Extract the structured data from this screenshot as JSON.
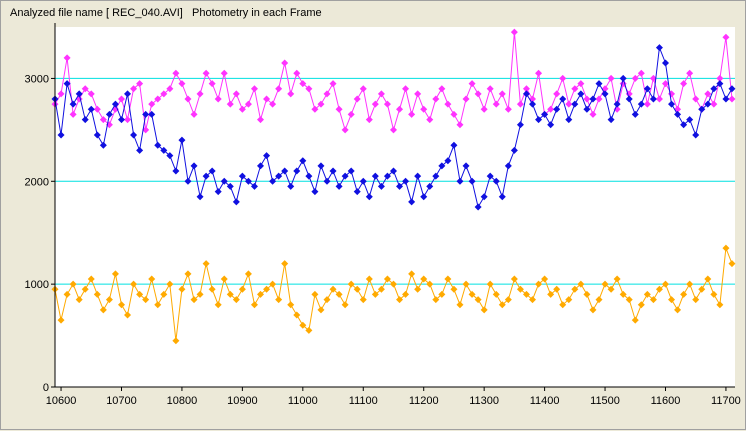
{
  "window": {
    "title": "Analyzed file name [ REC_040.AVI]   Photometry in each Frame"
  },
  "chart_data": {
    "type": "line",
    "title": "Analyzed file name [ REC_040.AVI]   Photometry in each Frame",
    "xlabel": "",
    "ylabel": "",
    "xlim": [
      10590,
      11715
    ],
    "ylim": [
      0,
      3500
    ],
    "xticks": [
      "10600",
      "10700",
      "10800",
      "10900",
      "11000",
      "11100",
      "11200",
      "11300",
      "11400",
      "11500",
      "11600",
      "11700"
    ],
    "yticks": [
      "0",
      "1000",
      "2000",
      "3000"
    ],
    "gridlines_y": [
      1000,
      2000,
      3000
    ],
    "grid_color": "#00e0e0",
    "series": [
      {
        "color": "#ff33ff",
        "x": [
          10590,
          10600,
          10610,
          10620,
          10630,
          10640,
          10650,
          10660,
          10670,
          10680,
          10690,
          10700,
          10710,
          10720,
          10730,
          10740,
          10750,
          10760,
          10770,
          10780,
          10790,
          10800,
          10810,
          10820,
          10830,
          10840,
          10850,
          10860,
          10870,
          10880,
          10890,
          10900,
          10910,
          10920,
          10930,
          10940,
          10950,
          10960,
          10970,
          10980,
          10990,
          11000,
          11010,
          11020,
          11030,
          11040,
          11050,
          11060,
          11070,
          11080,
          11090,
          11100,
          11110,
          11120,
          11130,
          11140,
          11150,
          11160,
          11170,
          11180,
          11190,
          11200,
          11210,
          11220,
          11230,
          11240,
          11250,
          11260,
          11270,
          11280,
          11290,
          11300,
          11310,
          11320,
          11330,
          11340,
          11350,
          11360,
          11370,
          11380,
          11390,
          11400,
          11410,
          11420,
          11430,
          11440,
          11450,
          11460,
          11470,
          11480,
          11490,
          11500,
          11510,
          11520,
          11530,
          11540,
          11550,
          11560,
          11570,
          11580,
          11590,
          11600,
          11610,
          11620,
          11630,
          11640,
          11650,
          11660,
          11670,
          11680,
          11690,
          11700,
          11710
        ],
        "y": [
          2750,
          2850,
          3200,
          2650,
          2800,
          2900,
          2850,
          2700,
          2600,
          2550,
          2700,
          2800,
          2600,
          2900,
          2950,
          2500,
          2750,
          2800,
          2850,
          2900,
          3050,
          2950,
          2800,
          2650,
          2850,
          3050,
          2950,
          2800,
          3050,
          2750,
          2850,
          2700,
          2750,
          2900,
          2600,
          2800,
          2750,
          2900,
          3150,
          2850,
          3050,
          2950,
          2900,
          2700,
          2750,
          2850,
          2950,
          2700,
          2500,
          2650,
          2800,
          2900,
          2600,
          2750,
          2850,
          2750,
          2500,
          2700,
          2900,
          2650,
          2850,
          2700,
          2600,
          2800,
          2900,
          2750,
          2650,
          2550,
          2800,
          2950,
          2850,
          2700,
          2900,
          2750,
          2850,
          2700,
          3450,
          2750,
          2900,
          2800,
          3050,
          2650,
          2700,
          2850,
          3000,
          2750,
          2900,
          2950,
          2800,
          2650,
          2800,
          2900,
          3000,
          2700,
          2950,
          2850,
          3000,
          3050,
          2750,
          3000,
          2800,
          2950,
          2850,
          2700,
          2950,
          3050,
          2800,
          2700,
          2850,
          2750,
          3000,
          3400,
          2800
        ]
      },
      {
        "color": "#1010e0",
        "x": [
          10590,
          10600,
          10610,
          10620,
          10630,
          10640,
          10650,
          10660,
          10670,
          10680,
          10690,
          10700,
          10710,
          10720,
          10730,
          10740,
          10750,
          10760,
          10770,
          10780,
          10790,
          10800,
          10810,
          10820,
          10830,
          10840,
          10850,
          10860,
          10870,
          10880,
          10890,
          10900,
          10910,
          10920,
          10930,
          10940,
          10950,
          10960,
          10970,
          10980,
          10990,
          11000,
          11010,
          11020,
          11030,
          11040,
          11050,
          11060,
          11070,
          11080,
          11090,
          11100,
          11110,
          11120,
          11130,
          11140,
          11150,
          11160,
          11170,
          11180,
          11190,
          11200,
          11210,
          11220,
          11230,
          11240,
          11250,
          11260,
          11270,
          11280,
          11290,
          11300,
          11310,
          11320,
          11330,
          11340,
          11350,
          11360,
          11370,
          11380,
          11390,
          11400,
          11410,
          11420,
          11430,
          11440,
          11450,
          11460,
          11470,
          11480,
          11490,
          11500,
          11510,
          11520,
          11530,
          11540,
          11550,
          11560,
          11570,
          11580,
          11590,
          11600,
          11610,
          11620,
          11630,
          11640,
          11650,
          11660,
          11670,
          11680,
          11690,
          11700,
          11710
        ],
        "y": [
          2800,
          2450,
          2950,
          2750,
          2850,
          2600,
          2700,
          2450,
          2350,
          2650,
          2750,
          2600,
          2850,
          2450,
          2300,
          2650,
          2650,
          2350,
          2300,
          2250,
          2100,
          2400,
          2000,
          2150,
          1850,
          2050,
          2100,
          1900,
          2000,
          1950,
          1800,
          2050,
          2000,
          1950,
          2150,
          2250,
          2000,
          2050,
          2100,
          1950,
          2100,
          2200,
          2050,
          1900,
          2150,
          2000,
          2100,
          1950,
          2050,
          2100,
          1900,
          2000,
          1850,
          2050,
          1950,
          2050,
          2100,
          1950,
          2000,
          1800,
          2050,
          1850,
          1950,
          2050,
          2150,
          2200,
          2350,
          2000,
          2150,
          2000,
          1750,
          1850,
          2050,
          2000,
          1850,
          2150,
          2300,
          2550,
          2850,
          2750,
          2600,
          2650,
          2550,
          2700,
          2800,
          2600,
          2750,
          2850,
          2700,
          2800,
          2950,
          2850,
          2600,
          2750,
          3000,
          2800,
          2650,
          2750,
          2900,
          2800,
          3300,
          3150,
          2750,
          2650,
          2550,
          2600,
          2450,
          2700,
          2750,
          2900,
          2950,
          2800,
          2900
        ]
      },
      {
        "color": "#ffaa00",
        "x": [
          10590,
          10600,
          10610,
          10620,
          10630,
          10640,
          10650,
          10660,
          10670,
          10680,
          10690,
          10700,
          10710,
          10720,
          10730,
          10740,
          10750,
          10760,
          10770,
          10780,
          10790,
          10800,
          10810,
          10820,
          10830,
          10840,
          10850,
          10860,
          10870,
          10880,
          10890,
          10900,
          10910,
          10920,
          10930,
          10940,
          10950,
          10960,
          10970,
          10980,
          10990,
          11000,
          11010,
          11020,
          11030,
          11040,
          11050,
          11060,
          11070,
          11080,
          11090,
          11100,
          11110,
          11120,
          11130,
          11140,
          11150,
          11160,
          11170,
          11180,
          11190,
          11200,
          11210,
          11220,
          11230,
          11240,
          11250,
          11260,
          11270,
          11280,
          11290,
          11300,
          11310,
          11320,
          11330,
          11340,
          11350,
          11360,
          11370,
          11380,
          11390,
          11400,
          11410,
          11420,
          11430,
          11440,
          11450,
          11460,
          11470,
          11480,
          11490,
          11500,
          11510,
          11520,
          11530,
          11540,
          11550,
          11560,
          11570,
          11580,
          11590,
          11600,
          11610,
          11620,
          11630,
          11640,
          11650,
          11660,
          11670,
          11680,
          11690,
          11700,
          11710
        ],
        "y": [
          950,
          650,
          900,
          1000,
          850,
          950,
          1050,
          900,
          750,
          850,
          1100,
          800,
          700,
          1000,
          900,
          850,
          1050,
          800,
          900,
          1000,
          450,
          950,
          1100,
          850,
          900,
          1200,
          950,
          800,
          1050,
          900,
          850,
          950,
          1100,
          800,
          900,
          950,
          1000,
          850,
          1200,
          800,
          700,
          600,
          550,
          900,
          750,
          850,
          950,
          900,
          800,
          1000,
          950,
          850,
          1050,
          900,
          950,
          1050,
          1000,
          850,
          900,
          1100,
          950,
          1050,
          1000,
          850,
          900,
          1050,
          950,
          800,
          1000,
          900,
          850,
          750,
          1000,
          900,
          800,
          850,
          1050,
          950,
          900,
          850,
          1000,
          1050,
          900,
          950,
          800,
          850,
          950,
          1000,
          900,
          750,
          850,
          1000,
          950,
          1050,
          900,
          850,
          650,
          800,
          900,
          850,
          950,
          1000,
          850,
          750,
          900,
          1000,
          850,
          950,
          1050,
          900,
          800,
          1350,
          1200
        ]
      }
    ]
  }
}
